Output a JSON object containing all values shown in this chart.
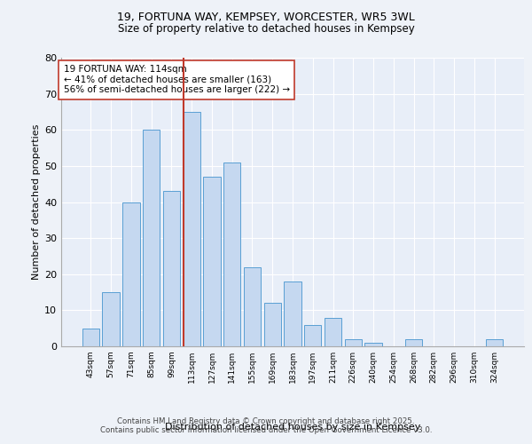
{
  "title_line1": "19, FORTUNA WAY, KEMPSEY, WORCESTER, WR5 3WL",
  "title_line2": "Size of property relative to detached houses in Kempsey",
  "xlabel": "Distribution of detached houses by size in Kempsey",
  "ylabel": "Number of detached properties",
  "categories": [
    "43sqm",
    "57sqm",
    "71sqm",
    "85sqm",
    "99sqm",
    "113sqm",
    "127sqm",
    "141sqm",
    "155sqm",
    "169sqm",
    "183sqm",
    "197sqm",
    "211sqm",
    "226sqm",
    "240sqm",
    "254sqm",
    "268sqm",
    "282sqm",
    "296sqm",
    "310sqm",
    "324sqm"
  ],
  "values": [
    5,
    15,
    40,
    60,
    43,
    65,
    47,
    51,
    22,
    12,
    18,
    6,
    8,
    2,
    1,
    0,
    2,
    0,
    0,
    0,
    2
  ],
  "bar_color": "#c5d8f0",
  "bar_edge_color": "#5a9fd4",
  "ylim": [
    0,
    80
  ],
  "yticks": [
    0,
    10,
    20,
    30,
    40,
    50,
    60,
    70,
    80
  ],
  "property_bin_index": 5,
  "vline_color": "#c0392b",
  "annotation_text": "19 FORTUNA WAY: 114sqm\n← 41% of detached houses are smaller (163)\n56% of semi-detached houses are larger (222) →",
  "annotation_box_color": "#ffffff",
  "annotation_box_edge": "#c0392b",
  "footer_line1": "Contains HM Land Registry data © Crown copyright and database right 2025.",
  "footer_line2": "Contains public sector information licensed under the Open Government Licence v3.0.",
  "bg_color": "#eef2f8",
  "plot_bg_color": "#e8eef8"
}
